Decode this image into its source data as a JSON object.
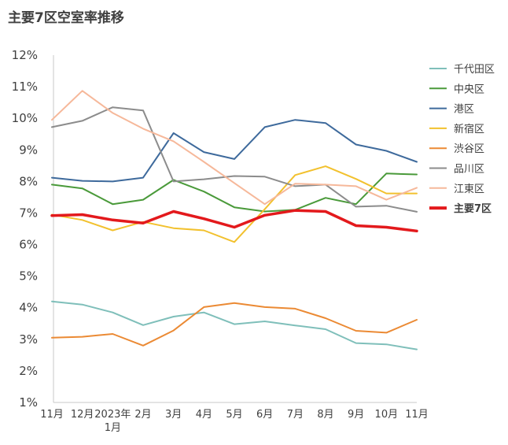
{
  "chart_data": {
    "type": "line",
    "title": "主要7区空室率推移",
    "xlabel": "",
    "ylabel": "",
    "ylim": [
      1,
      12
    ],
    "yticks": [
      "1%",
      "2%",
      "3%",
      "4%",
      "5%",
      "6%",
      "7%",
      "8%",
      "9%",
      "10%",
      "11%",
      "12%"
    ],
    "categories": [
      [
        "11月"
      ],
      [
        "12月"
      ],
      [
        "2023年",
        "1月"
      ],
      [
        "2月"
      ],
      [
        "3月"
      ],
      [
        "4月"
      ],
      [
        "5月"
      ],
      [
        "6月"
      ],
      [
        "7月"
      ],
      [
        "8月"
      ],
      [
        "9月"
      ],
      [
        "10月"
      ],
      [
        "11月"
      ]
    ],
    "legend_position": "right",
    "series": [
      {
        "name": "千代田区",
        "color": "#7fbfba",
        "highlight": false,
        "values": [
          4.2,
          4.1,
          3.85,
          3.45,
          3.72,
          3.85,
          3.48,
          3.57,
          3.44,
          3.32,
          2.88,
          2.84,
          2.68
        ]
      },
      {
        "name": "中央区",
        "color": "#4a9a3a",
        "highlight": false,
        "values": [
          7.9,
          7.78,
          7.28,
          7.42,
          8.05,
          7.68,
          7.18,
          7.05,
          7.1,
          7.48,
          7.28,
          8.25,
          8.22
        ]
      },
      {
        "name": "港区",
        "color": "#3e6a9c",
        "highlight": false,
        "values": [
          8.12,
          8.02,
          8.0,
          8.12,
          9.53,
          8.93,
          8.71,
          9.72,
          9.95,
          9.85,
          9.17,
          8.97,
          8.62
        ]
      },
      {
        "name": "新宿区",
        "color": "#f2c12e",
        "highlight": false,
        "values": [
          6.95,
          6.78,
          6.45,
          6.72,
          6.52,
          6.45,
          6.08,
          7.12,
          8.2,
          8.48,
          8.08,
          7.62,
          7.62
        ]
      },
      {
        "name": "渋谷区",
        "color": "#eb8a34",
        "highlight": false,
        "values": [
          3.05,
          3.08,
          3.17,
          2.8,
          3.28,
          4.02,
          4.15,
          4.02,
          3.97,
          3.67,
          3.27,
          3.21,
          3.62
        ]
      },
      {
        "name": "品川区",
        "color": "#8c8c8c",
        "highlight": false,
        "values": [
          9.72,
          9.92,
          10.35,
          10.25,
          8.0,
          8.07,
          8.17,
          8.15,
          7.85,
          7.9,
          7.2,
          7.23,
          7.04
        ]
      },
      {
        "name": "江東区",
        "color": "#f6b89a",
        "highlight": false,
        "values": [
          9.95,
          10.87,
          10.17,
          9.67,
          9.27,
          8.62,
          7.95,
          7.28,
          7.93,
          7.9,
          7.85,
          7.42,
          7.8
        ]
      },
      {
        "name": "主要7区",
        "color": "#e3191c",
        "highlight": true,
        "values": [
          6.92,
          6.95,
          6.78,
          6.68,
          7.05,
          6.82,
          6.55,
          6.93,
          7.08,
          7.05,
          6.6,
          6.55,
          6.43
        ]
      }
    ]
  }
}
